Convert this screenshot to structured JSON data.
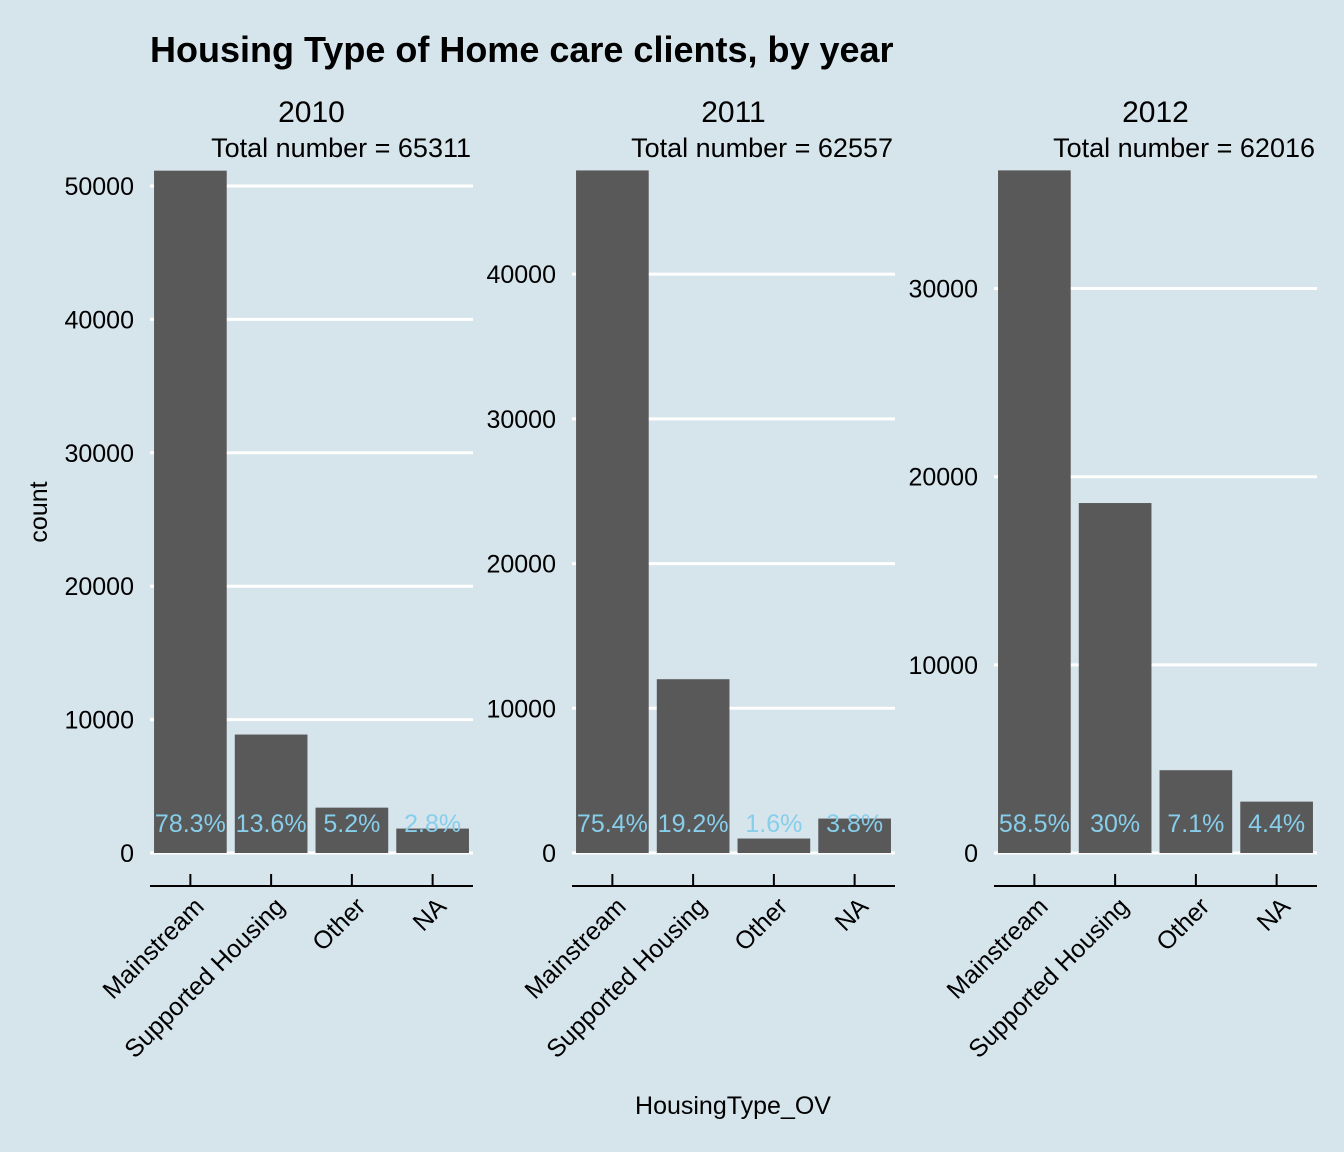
{
  "chart_data": {
    "type": "bar",
    "title": "Housing Type of Home care clients, by year",
    "xlabel": "HousingType_OV",
    "ylabel": "count",
    "grid": true,
    "bar_color": "#595959",
    "label_color": "#87ceeb",
    "background_color": "#d6e4ec",
    "categories": [
      "Mainstream",
      "Supported Housing",
      "Other",
      "NA"
    ],
    "panels": [
      {
        "title": "2010",
        "subtitle": "Total number = 65311",
        "ylim": [
          0,
          51200
        ],
        "yticks": [
          0,
          10000,
          20000,
          30000,
          40000,
          50000
        ],
        "values": [
          51150,
          8880,
          3400,
          1830
        ],
        "labels": [
          "78.3%",
          "13.6%",
          "5.2%",
          "2.8%"
        ]
      },
      {
        "title": "2011",
        "subtitle": "Total number = 62557",
        "ylim": [
          0,
          47200
        ],
        "yticks": [
          0,
          10000,
          20000,
          30000,
          40000
        ],
        "values": [
          47170,
          12010,
          1000,
          2380
        ],
        "labels": [
          "75.4%",
          "19.2%",
          "1.6%",
          "3.8%"
        ]
      },
      {
        "title": "2012",
        "subtitle": "Total number = 62016",
        "ylim": [
          0,
          36300
        ],
        "yticks": [
          0,
          10000,
          20000,
          30000
        ],
        "values": [
          36280,
          18600,
          4400,
          2730
        ],
        "labels": [
          "58.5%",
          "30%",
          "7.1%",
          "4.4%"
        ]
      }
    ]
  }
}
